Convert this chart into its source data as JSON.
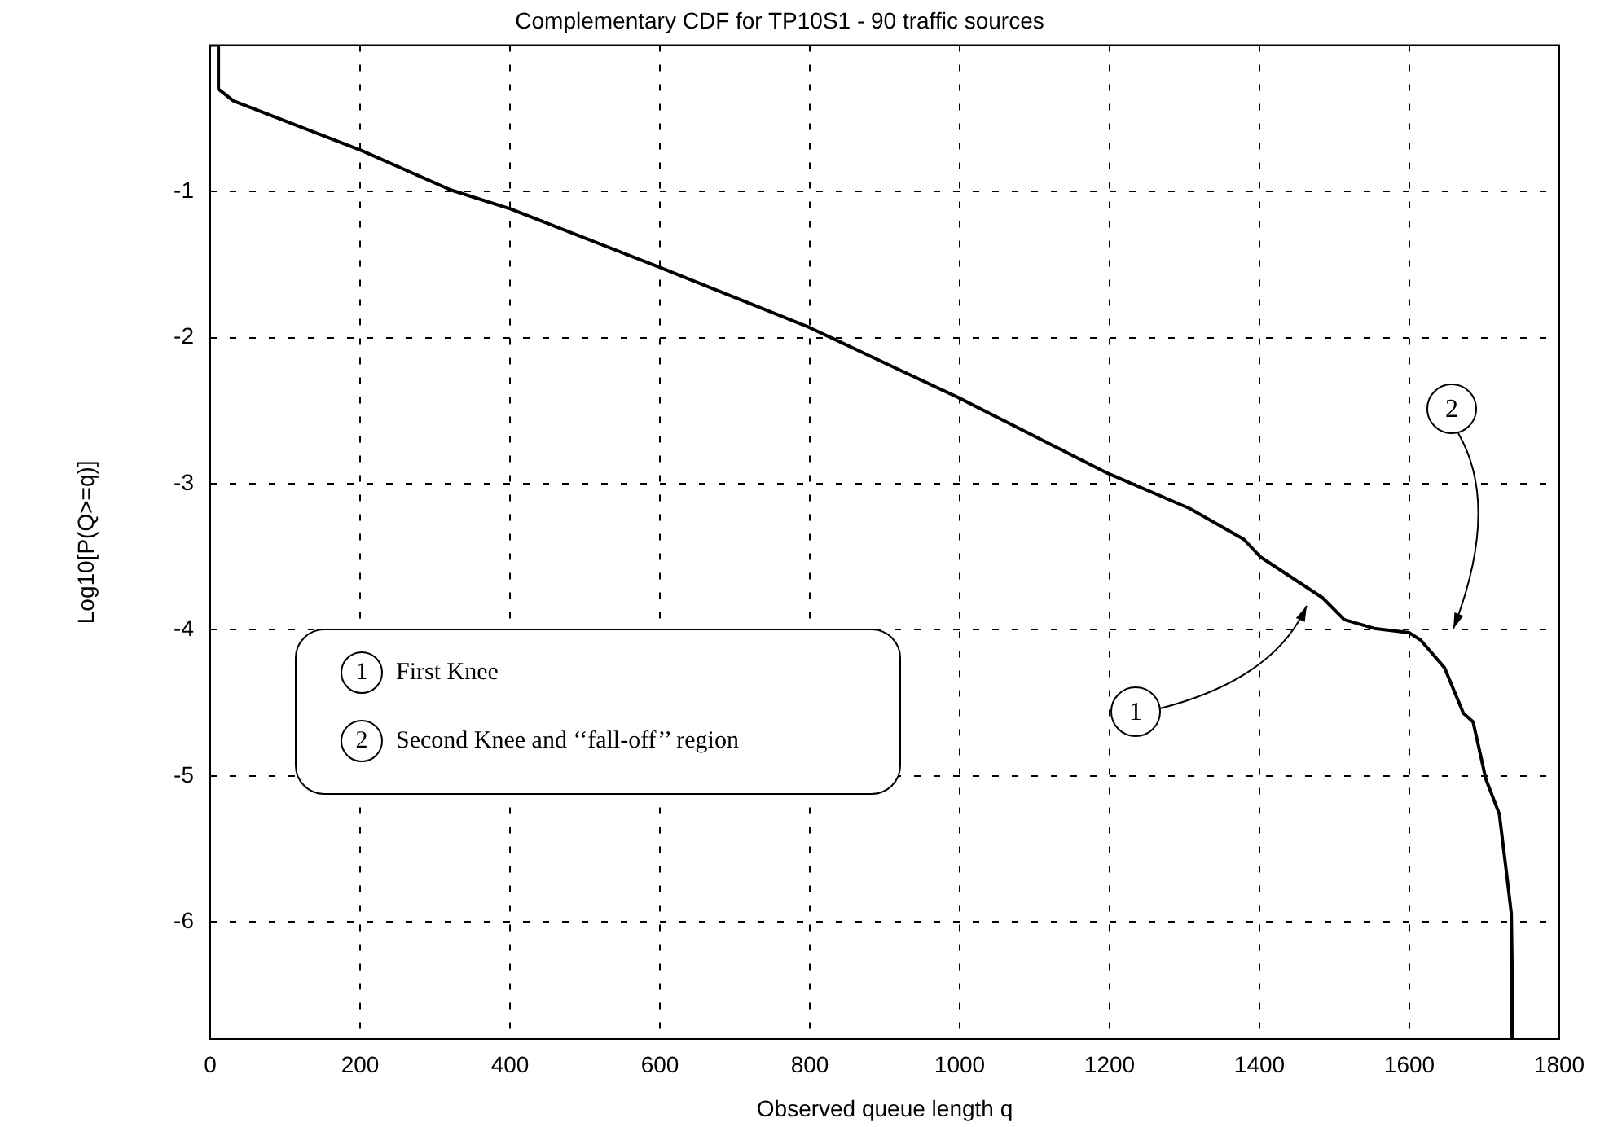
{
  "chart_data": {
    "type": "line",
    "title": "Complementary CDF for TP10S1 - 90 traffic sources",
    "xlabel": "Observed queue length q",
    "ylabel": "Log10[P(Q>=q)]",
    "x": [
      0,
      11,
      11,
      31,
      202,
      321,
      401,
      600,
      799,
      915,
      998,
      1198,
      1307,
      1379,
      1401,
      1484,
      1513,
      1553,
      1600,
      1615,
      1647,
      1672,
      1685,
      1702,
      1720,
      1730,
      1736,
      1737,
      1737
    ],
    "series": [
      {
        "color": "#000000",
        "values": [
          0,
          0,
          -0.3,
          -0.38,
          -0.72,
          -0.99,
          -1.12,
          -1.52,
          -1.93,
          -2.21,
          -2.41,
          -2.93,
          -3.17,
          -3.38,
          -3.5,
          -3.78,
          -3.93,
          -3.99,
          -4.02,
          -4.07,
          -4.26,
          -4.57,
          -4.63,
          -5.02,
          -5.26,
          -5.68,
          -5.94,
          -6.3,
          -6.8
        ]
      }
    ],
    "xlim": [
      0,
      1800
    ],
    "ylim": [
      -6.8,
      0
    ],
    "xticks": [
      0,
      200,
      400,
      600,
      800,
      1000,
      1200,
      1400,
      1600,
      1800
    ],
    "yticks": [
      -6,
      -5,
      -4,
      -3,
      -2,
      -1
    ],
    "grid": true,
    "marker": "none",
    "annotations": [
      "1",
      "2",
      "1",
      "First Knee",
      "2",
      "Second Knee and ‘‘fall-off’’ region"
    ]
  }
}
